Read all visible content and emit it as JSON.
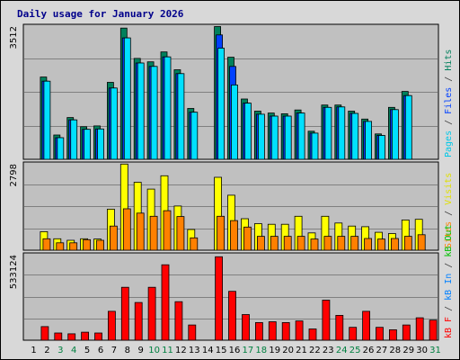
{
  "title": "Daily usage for January 2026",
  "colors": {
    "background": "#d8d8d8",
    "plot_bg": "#c0c0c0",
    "grid": "#808080",
    "hits": "#00805c",
    "files": "#0040ff",
    "pages": "#00e0ff",
    "visits": "#ffff00",
    "sites": "#ff8000",
    "kb_f": "#ff0000",
    "kb_in": "#0080ff",
    "kb_out": "#00c000",
    "weekday_text": "#000000",
    "weekend_text": "#008040",
    "title_text": "#00008b"
  },
  "side_labels": {
    "top": [
      {
        "text": "Pages",
        "color": "#00c8e8"
      },
      {
        "text": " / ",
        "color": "#404040"
      },
      {
        "text": "Files",
        "color": "#0040ff"
      },
      {
        "text": " / ",
        "color": "#404040"
      },
      {
        "text": "Hits",
        "color": "#00805c"
      }
    ],
    "middle": [
      {
        "text": "Sites",
        "color": "#ff8000"
      },
      {
        "text": " / ",
        "color": "#404040"
      },
      {
        "text": "Visits",
        "color": "#e0e000"
      }
    ],
    "bottom": [
      {
        "text": "kB F",
        "color": "#ff0000"
      },
      {
        "text": " / ",
        "color": "#404040"
      },
      {
        "text": "kB In",
        "color": "#0080ff"
      },
      {
        "text": " / ",
        "color": "#404040"
      },
      {
        "text": "kB Out",
        "color": "#00c000"
      }
    ]
  },
  "chart_data": [
    {
      "type": "bar",
      "ylim": [
        0,
        3512
      ],
      "ymax_label": "3512",
      "categories": [
        "1",
        "2",
        "3",
        "4",
        "5",
        "6",
        "7",
        "8",
        "9",
        "10",
        "11",
        "12",
        "13",
        "14",
        "15",
        "16",
        "17",
        "18",
        "19",
        "20",
        "21",
        "22",
        "23",
        "24",
        "25",
        "26",
        "27",
        "28",
        "29",
        "30",
        "31"
      ],
      "series": [
        {
          "name": "Hits",
          "values": [
            0,
            2170,
            640,
            1100,
            860,
            880,
            2030,
            3460,
            2660,
            2570,
            2830,
            2360,
            1340,
            0,
            3500,
            2690,
            1590,
            1270,
            1220,
            1200,
            1300,
            740,
            1430,
            1430,
            1270,
            1060,
            670,
            1370,
            1790,
            0,
            0
          ]
        },
        {
          "name": "Files",
          "values": [
            0,
            2060,
            570,
            1040,
            790,
            800,
            1880,
            3200,
            2540,
            2450,
            2700,
            2260,
            1240,
            0,
            3280,
            2450,
            1480,
            1190,
            1140,
            1140,
            1220,
            690,
            1370,
            1380,
            1210,
            1000,
            630,
            1310,
            1680,
            0,
            0
          ]
        },
        {
          "name": "Pages",
          "values": [
            0,
            2060,
            570,
            1040,
            790,
            800,
            1880,
            3200,
            2540,
            2450,
            2700,
            2260,
            1240,
            0,
            2930,
            1960,
            1480,
            1190,
            1140,
            1140,
            1220,
            690,
            1370,
            1380,
            1210,
            1000,
            630,
            1310,
            1680,
            0,
            0
          ]
        }
      ]
    },
    {
      "type": "bar",
      "ylim": [
        0,
        2798
      ],
      "ymax_label": "2798",
      "categories": [
        "1",
        "2",
        "3",
        "4",
        "5",
        "6",
        "7",
        "8",
        "9",
        "10",
        "11",
        "12",
        "13",
        "14",
        "15",
        "16",
        "17",
        "18",
        "19",
        "20",
        "21",
        "22",
        "23",
        "24",
        "25",
        "26",
        "27",
        "28",
        "29",
        "30",
        "31"
      ],
      "series": [
        {
          "name": "Visits",
          "values": [
            0,
            600,
            370,
            320,
            370,
            360,
            1330,
            2790,
            2200,
            1980,
            2410,
            1430,
            670,
            0,
            2360,
            1780,
            1020,
            860,
            840,
            840,
            1100,
            560,
            1100,
            880,
            780,
            760,
            580,
            540,
            980,
            1000,
            0
          ]
        },
        {
          "name": "Sites",
          "values": [
            0,
            370,
            240,
            240,
            340,
            320,
            780,
            1340,
            1200,
            1100,
            1280,
            1090,
            400,
            0,
            1100,
            960,
            750,
            450,
            450,
            450,
            450,
            360,
            450,
            450,
            450,
            380,
            360,
            380,
            450,
            500,
            0
          ]
        }
      ]
    },
    {
      "type": "bar",
      "ylim": [
        0,
        533124
      ],
      "ymax_label": "533124",
      "categories": [
        "1",
        "2",
        "3",
        "4",
        "5",
        "6",
        "7",
        "8",
        "9",
        "10",
        "11",
        "12",
        "13",
        "14",
        "15",
        "16",
        "17",
        "18",
        "19",
        "20",
        "21",
        "22",
        "23",
        "24",
        "25",
        "26",
        "27",
        "28",
        "29",
        "30",
        "31"
      ],
      "series": [
        {
          "name": "kB F",
          "values": [
            0,
            85000,
            45000,
            40000,
            50000,
            45000,
            180000,
            330000,
            235000,
            330000,
            470000,
            240000,
            95000,
            0,
            520000,
            305000,
            160000,
            110000,
            115000,
            110000,
            120000,
            70000,
            250000,
            155000,
            80000,
            180000,
            80000,
            65000,
            95000,
            140000,
            125000
          ]
        },
        {
          "name": "kB In",
          "values": [
            0,
            0,
            0,
            0,
            0,
            0,
            0,
            0,
            0,
            0,
            0,
            0,
            0,
            0,
            0,
            0,
            0,
            0,
            0,
            0,
            0,
            0,
            0,
            0,
            0,
            0,
            0,
            0,
            0,
            0,
            0
          ]
        },
        {
          "name": "kB Out",
          "values": [
            0,
            0,
            0,
            0,
            0,
            0,
            0,
            0,
            0,
            0,
            0,
            0,
            0,
            0,
            0,
            0,
            0,
            0,
            0,
            0,
            0,
            0,
            0,
            0,
            0,
            0,
            0,
            0,
            0,
            0,
            0
          ]
        }
      ]
    }
  ],
  "day_labels": [
    "1",
    "2",
    "3",
    "4",
    "5",
    "6",
    "7",
    "8",
    "9",
    "10",
    "11",
    "12",
    "13",
    "14",
    "15",
    "16",
    "17",
    "18",
    "19",
    "20",
    "21",
    "22",
    "23",
    "24",
    "25",
    "26",
    "27",
    "28",
    "29",
    "30",
    "31"
  ],
  "weekend_days": [
    3,
    4,
    10,
    11,
    17,
    18,
    24,
    25,
    31
  ]
}
